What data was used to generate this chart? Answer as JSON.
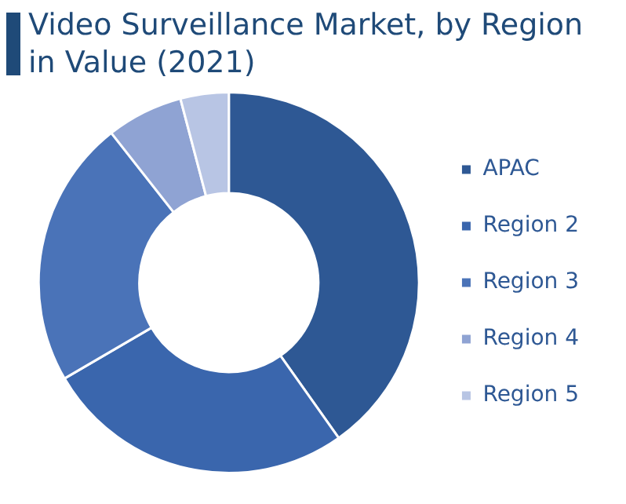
{
  "chart_data": {
    "type": "donut",
    "title": "Video Surveillance Market, by Region in Value (2021)",
    "categories": [
      "APAC",
      "Region 2",
      "Region 3",
      "Region 4",
      "Region 5"
    ],
    "values": [
      40.2,
      26.4,
      22.8,
      6.5,
      4.1
    ],
    "colors": [
      "#2e5894",
      "#3a66ad",
      "#4a73b8",
      "#8fa3d3",
      "#b8c5e4"
    ],
    "legend": "right"
  }
}
